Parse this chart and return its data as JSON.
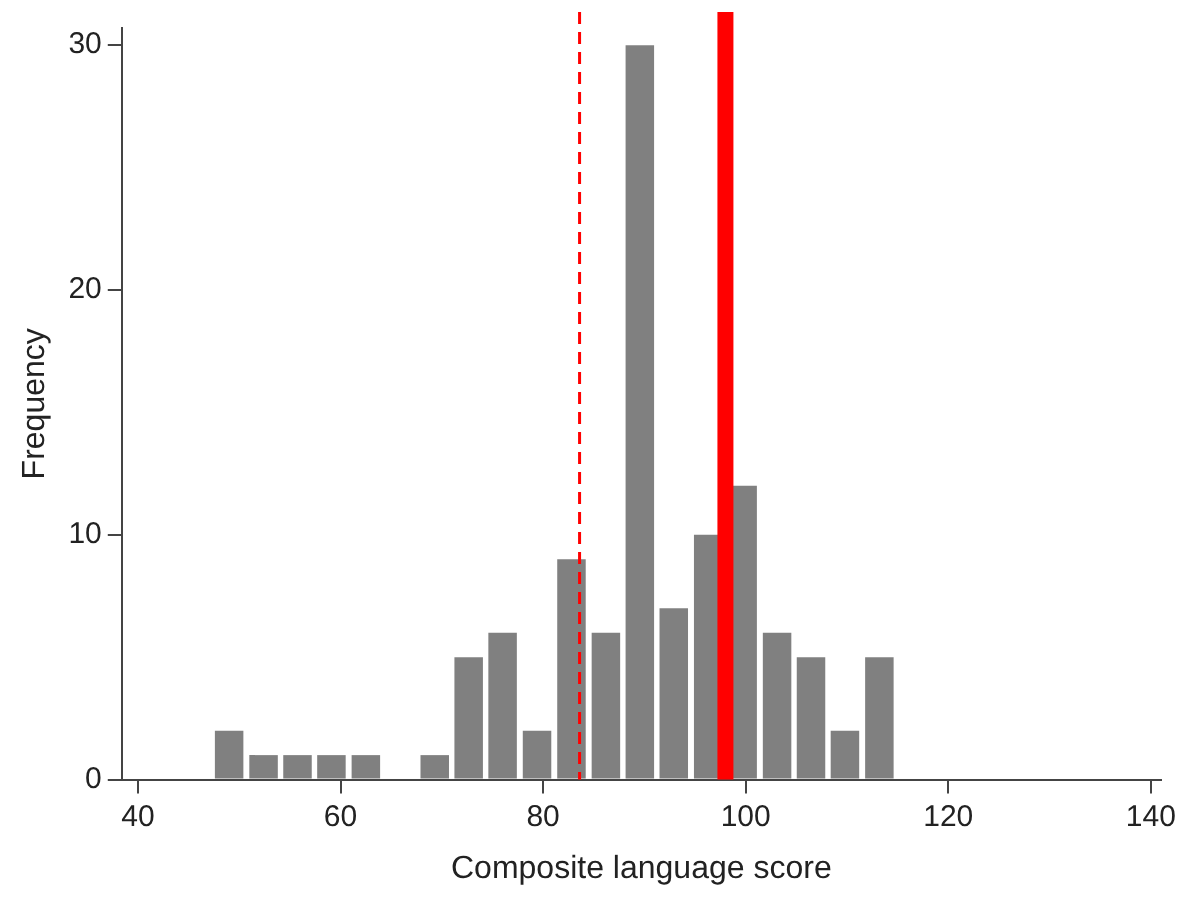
{
  "chart_data": {
    "type": "histogram",
    "bins": [
      47.3,
      50.7,
      54.1,
      57.4,
      60.8,
      64.2,
      67.6,
      71.0,
      74.3,
      77.7,
      81.1,
      84.5,
      87.9,
      91.2,
      94.6,
      98.0,
      101.4,
      104.8,
      108.1,
      111.5,
      114.9
    ],
    "values": [
      2,
      1,
      1,
      1,
      1,
      0,
      1,
      5,
      6,
      2,
      9,
      6,
      30,
      7,
      10,
      12,
      6,
      5,
      2,
      5
    ],
    "color": "#808080",
    "xlabel": "Composite language score",
    "ylabel": "Frequency",
    "xlim": [
      38.4,
      141
    ],
    "xticks": [
      40,
      60,
      80,
      100,
      120,
      140
    ],
    "ylim": [
      0,
      30.7
    ],
    "yticks": [
      0,
      10,
      20,
      30
    ],
    "grid": false,
    "legend": false,
    "ref_lines": [
      {
        "axis": "x",
        "value": 83.6,
        "color": "#ff0000",
        "line_style": "dashed"
      },
      {
        "axis": "x",
        "value": 98.0,
        "color": "#ff0000",
        "line_style": "solid"
      }
    ]
  }
}
